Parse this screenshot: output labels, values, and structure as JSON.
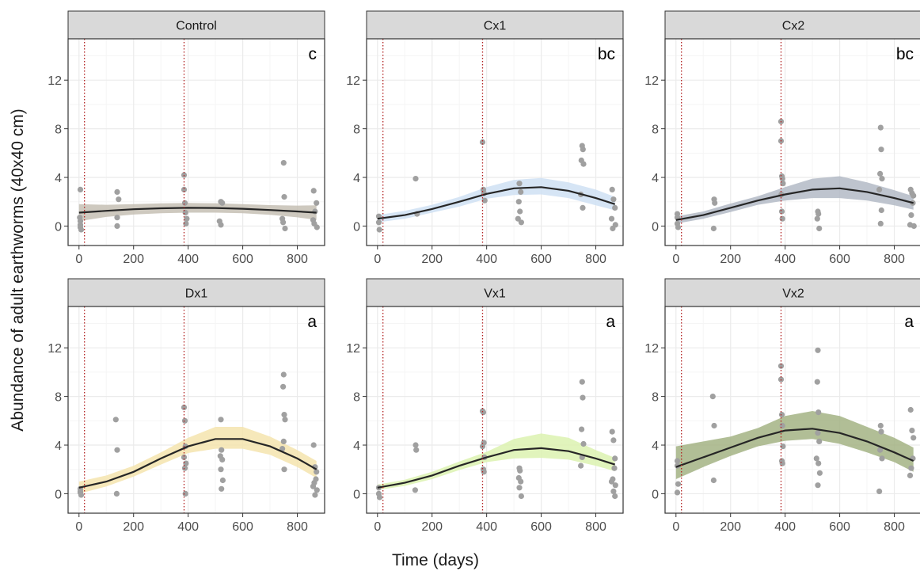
{
  "chart_data": {
    "type": "scatter",
    "facets": true,
    "xlabel": "Time (days)",
    "ylabel": "Abundance of adult earthworms (40x40 cm)",
    "xlim": [
      -40,
      900
    ],
    "ylim": [
      -1.6,
      15.4
    ],
    "xticks": [
      0,
      200,
      400,
      600,
      800
    ],
    "yticks": [
      0,
      4,
      8,
      12
    ],
    "grid": true,
    "vlines": [
      20,
      385
    ],
    "colors": {
      "points": "#a0a0a0",
      "line": "#262626",
      "vline": "#b22222",
      "strip_bg": "#d9d9d9",
      "panel_border": "#333333",
      "grid_major": "#ebebeb",
      "grid_minor": "#f5f5f5"
    },
    "panels": [
      {
        "name": "Control",
        "letter": "c",
        "band_color": "#c5bfb4",
        "fit": {
          "x": [
            0,
            100,
            200,
            300,
            400,
            500,
            600,
            700,
            800,
            870
          ],
          "y": [
            1.1,
            1.25,
            1.38,
            1.46,
            1.5,
            1.49,
            1.42,
            1.32,
            1.2,
            1.1
          ],
          "lower": [
            0.4,
            0.75,
            0.95,
            1.05,
            1.1,
            1.1,
            1.05,
            0.92,
            0.72,
            0.5
          ],
          "upper": [
            1.8,
            1.75,
            1.8,
            1.87,
            1.9,
            1.88,
            1.8,
            1.72,
            1.68,
            1.7
          ]
        },
        "points": [
          [
            5,
            3.0
          ],
          [
            5,
            0.4
          ],
          [
            5,
            0.1
          ],
          [
            5,
            -0.1
          ],
          [
            8,
            -0.3
          ],
          [
            3,
            0.7
          ],
          [
            140,
            2.8
          ],
          [
            140,
            0.7
          ],
          [
            140,
            0.0
          ],
          [
            145,
            2.2
          ],
          [
            385,
            4.2
          ],
          [
            385,
            3.0
          ],
          [
            388,
            1.9
          ],
          [
            390,
            1.1
          ],
          [
            392,
            0.2
          ],
          [
            395,
            0.6
          ],
          [
            520,
            2.0
          ],
          [
            525,
            1.9
          ],
          [
            515,
            0.4
          ],
          [
            520,
            0.1
          ],
          [
            750,
            5.2
          ],
          [
            752,
            2.4
          ],
          [
            745,
            0.6
          ],
          [
            755,
            -0.2
          ],
          [
            748,
            0.3
          ],
          [
            860,
            2.9
          ],
          [
            870,
            1.9
          ],
          [
            865,
            1.2
          ],
          [
            858,
            0.5
          ],
          [
            872,
            -0.1
          ],
          [
            862,
            0.2
          ]
        ]
      },
      {
        "name": "Cx1",
        "letter": "bc",
        "band_color": "#cfe0f3",
        "fit": {
          "x": [
            0,
            100,
            200,
            300,
            400,
            500,
            600,
            700,
            800,
            870
          ],
          "y": [
            0.6,
            0.9,
            1.4,
            2.0,
            2.65,
            3.1,
            3.2,
            2.9,
            2.3,
            1.8
          ],
          "lower": [
            0.3,
            0.6,
            1.1,
            1.6,
            2.25,
            2.55,
            2.6,
            2.3,
            1.7,
            1.3
          ],
          "upper": [
            0.9,
            1.25,
            1.75,
            2.4,
            3.2,
            3.8,
            3.95,
            3.6,
            3.0,
            2.4
          ]
        },
        "points": [
          [
            5,
            0.8
          ],
          [
            5,
            0.3
          ],
          [
            7,
            -0.3
          ],
          [
            140,
            3.9
          ],
          [
            145,
            1.0
          ],
          [
            385,
            6.9
          ],
          [
            388,
            3.0
          ],
          [
            390,
            2.7
          ],
          [
            393,
            2.1
          ],
          [
            520,
            3.5
          ],
          [
            525,
            2.8
          ],
          [
            518,
            2.0
          ],
          [
            522,
            1.2
          ],
          [
            515,
            0.6
          ],
          [
            527,
            0.3
          ],
          [
            750,
            6.6
          ],
          [
            753,
            6.3
          ],
          [
            747,
            5.4
          ],
          [
            755,
            5.1
          ],
          [
            745,
            2.6
          ],
          [
            752,
            1.5
          ],
          [
            860,
            3.0
          ],
          [
            865,
            2.2
          ],
          [
            870,
            1.5
          ],
          [
            858,
            0.6
          ],
          [
            872,
            0.1
          ],
          [
            862,
            -0.2
          ]
        ]
      },
      {
        "name": "Cx2",
        "letter": "bc",
        "band_color": "#b3bac6",
        "fit": {
          "x": [
            0,
            100,
            200,
            300,
            400,
            500,
            600,
            700,
            800,
            870
          ],
          "y": [
            0.5,
            0.9,
            1.5,
            2.1,
            2.6,
            3.0,
            3.1,
            2.8,
            2.3,
            1.9
          ],
          "lower": [
            0.2,
            0.6,
            1.15,
            1.75,
            2.1,
            2.3,
            2.3,
            2.1,
            1.7,
            1.35
          ],
          "upper": [
            0.8,
            1.2,
            1.85,
            2.45,
            3.2,
            3.9,
            4.1,
            3.6,
            2.95,
            2.45
          ]
        },
        "points": [
          [
            5,
            1.0
          ],
          [
            5,
            0.7
          ],
          [
            5,
            0.2
          ],
          [
            8,
            -0.1
          ],
          [
            140,
            2.2
          ],
          [
            142,
            1.9
          ],
          [
            138,
            -0.2
          ],
          [
            385,
            8.6
          ],
          [
            385,
            7.0
          ],
          [
            388,
            4.1
          ],
          [
            390,
            3.9
          ],
          [
            392,
            3.5
          ],
          [
            386,
            2.6
          ],
          [
            388,
            1.2
          ],
          [
            390,
            0.6
          ],
          [
            520,
            1.2
          ],
          [
            522,
            1.0
          ],
          [
            518,
            0.6
          ],
          [
            525,
            -0.2
          ],
          [
            750,
            8.1
          ],
          [
            752,
            6.3
          ],
          [
            748,
            4.3
          ],
          [
            755,
            3.9
          ],
          [
            745,
            3.0
          ],
          [
            753,
            1.3
          ],
          [
            750,
            0.2
          ],
          [
            860,
            3.0
          ],
          [
            865,
            2.7
          ],
          [
            870,
            2.5
          ],
          [
            868,
            1.9
          ],
          [
            862,
            0.9
          ],
          [
            858,
            0.1
          ],
          [
            872,
            0.0
          ]
        ]
      },
      {
        "name": "Dx1",
        "letter": "a",
        "band_color": "#f4e4ae",
        "fit": {
          "x": [
            0,
            100,
            200,
            300,
            400,
            500,
            600,
            700,
            800,
            870
          ],
          "y": [
            0.5,
            1.0,
            1.8,
            2.9,
            3.9,
            4.5,
            4.5,
            3.9,
            2.9,
            2.0
          ],
          "lower": [
            0.0,
            0.6,
            1.4,
            2.4,
            3.35,
            3.7,
            3.7,
            3.2,
            2.2,
            1.3
          ],
          "upper": [
            1.0,
            1.5,
            2.3,
            3.4,
            4.6,
            5.5,
            5.5,
            4.7,
            3.6,
            2.7
          ]
        },
        "points": [
          [
            5,
            0.4
          ],
          [
            5,
            0.1
          ],
          [
            8,
            -0.1
          ],
          [
            5,
            0.2
          ],
          [
            135,
            6.1
          ],
          [
            140,
            3.6
          ],
          [
            138,
            0.0
          ],
          [
            385,
            7.1
          ],
          [
            388,
            6.0
          ],
          [
            390,
            3.9
          ],
          [
            385,
            3.0
          ],
          [
            392,
            2.5
          ],
          [
            388,
            2.1
          ],
          [
            390,
            0.0
          ],
          [
            520,
            6.1
          ],
          [
            522,
            3.6
          ],
          [
            518,
            3.1
          ],
          [
            525,
            2.8
          ],
          [
            520,
            2.0
          ],
          [
            527,
            1.1
          ],
          [
            522,
            0.4
          ],
          [
            750,
            9.8
          ],
          [
            748,
            8.8
          ],
          [
            752,
            6.5
          ],
          [
            755,
            6.1
          ],
          [
            750,
            4.3
          ],
          [
            745,
            3.7
          ],
          [
            752,
            2.0
          ],
          [
            860,
            4.0
          ],
          [
            865,
            2.2
          ],
          [
            870,
            1.8
          ],
          [
            868,
            1.2
          ],
          [
            862,
            0.9
          ],
          [
            858,
            0.6
          ],
          [
            872,
            0.3
          ],
          [
            865,
            -0.1
          ]
        ]
      },
      {
        "name": "Vx1",
        "letter": "a",
        "band_color": "#dcf2b0",
        "fit": {
          "x": [
            0,
            100,
            200,
            300,
            400,
            500,
            600,
            700,
            800,
            870
          ],
          "y": [
            0.5,
            0.9,
            1.5,
            2.3,
            3.0,
            3.6,
            3.75,
            3.5,
            2.9,
            2.4
          ],
          "lower": [
            0.3,
            0.65,
            1.2,
            1.95,
            2.6,
            2.9,
            2.95,
            2.8,
            2.3,
            1.85
          ],
          "upper": [
            0.75,
            1.15,
            1.8,
            2.65,
            3.45,
            4.5,
            4.95,
            4.6,
            3.6,
            2.95
          ]
        },
        "points": [
          [
            5,
            0.5
          ],
          [
            5,
            0.0
          ],
          [
            8,
            -0.3
          ],
          [
            140,
            4.0
          ],
          [
            142,
            3.6
          ],
          [
            138,
            0.3
          ],
          [
            385,
            6.8
          ],
          [
            388,
            6.7
          ],
          [
            390,
            4.2
          ],
          [
            385,
            3.9
          ],
          [
            392,
            3.0
          ],
          [
            388,
            2.0
          ],
          [
            390,
            1.8
          ],
          [
            520,
            2.1
          ],
          [
            522,
            1.9
          ],
          [
            518,
            1.3
          ],
          [
            525,
            1.0
          ],
          [
            520,
            0.5
          ],
          [
            527,
            -0.2
          ],
          [
            750,
            9.2
          ],
          [
            752,
            7.9
          ],
          [
            748,
            5.3
          ],
          [
            755,
            4.1
          ],
          [
            750,
            3.0
          ],
          [
            745,
            2.3
          ],
          [
            860,
            5.1
          ],
          [
            865,
            4.4
          ],
          [
            870,
            2.9
          ],
          [
            868,
            2.1
          ],
          [
            862,
            1.2
          ],
          [
            858,
            1.0
          ],
          [
            872,
            0.7
          ],
          [
            865,
            0.2
          ],
          [
            870,
            -0.2
          ]
        ]
      },
      {
        "name": "Vx2",
        "letter": "a",
        "band_color": "#a3b384",
        "fit": {
          "x": [
            0,
            100,
            200,
            300,
            400,
            500,
            600,
            700,
            800,
            870
          ],
          "y": [
            2.2,
            3.0,
            3.8,
            4.6,
            5.2,
            5.35,
            5.0,
            4.3,
            3.4,
            2.7
          ],
          "lower": [
            1.2,
            2.2,
            3.1,
            3.9,
            4.35,
            4.5,
            4.1,
            3.4,
            2.6,
            1.8
          ],
          "upper": [
            3.9,
            4.3,
            4.7,
            5.4,
            6.4,
            6.8,
            6.4,
            5.5,
            4.6,
            3.8
          ]
        },
        "points": [
          [
            5,
            2.7
          ],
          [
            5,
            2.3
          ],
          [
            8,
            0.8
          ],
          [
            5,
            0.1
          ],
          [
            135,
            8.0
          ],
          [
            140,
            5.6
          ],
          [
            138,
            1.1
          ],
          [
            385,
            10.5
          ],
          [
            385,
            9.4
          ],
          [
            388,
            6.5
          ],
          [
            390,
            5.6
          ],
          [
            392,
            3.9
          ],
          [
            388,
            2.7
          ],
          [
            390,
            2.5
          ],
          [
            520,
            11.8
          ],
          [
            518,
            9.2
          ],
          [
            522,
            6.7
          ],
          [
            520,
            5.0
          ],
          [
            525,
            4.3
          ],
          [
            515,
            2.9
          ],
          [
            522,
            2.5
          ],
          [
            527,
            1.7
          ],
          [
            520,
            0.7
          ],
          [
            750,
            5.6
          ],
          [
            752,
            5.1
          ],
          [
            748,
            3.6
          ],
          [
            755,
            2.9
          ],
          [
            745,
            0.2
          ],
          [
            860,
            6.9
          ],
          [
            865,
            5.2
          ],
          [
            870,
            4.6
          ],
          [
            868,
            2.9
          ],
          [
            862,
            2.1
          ],
          [
            858,
            1.5
          ]
        ]
      }
    ]
  }
}
